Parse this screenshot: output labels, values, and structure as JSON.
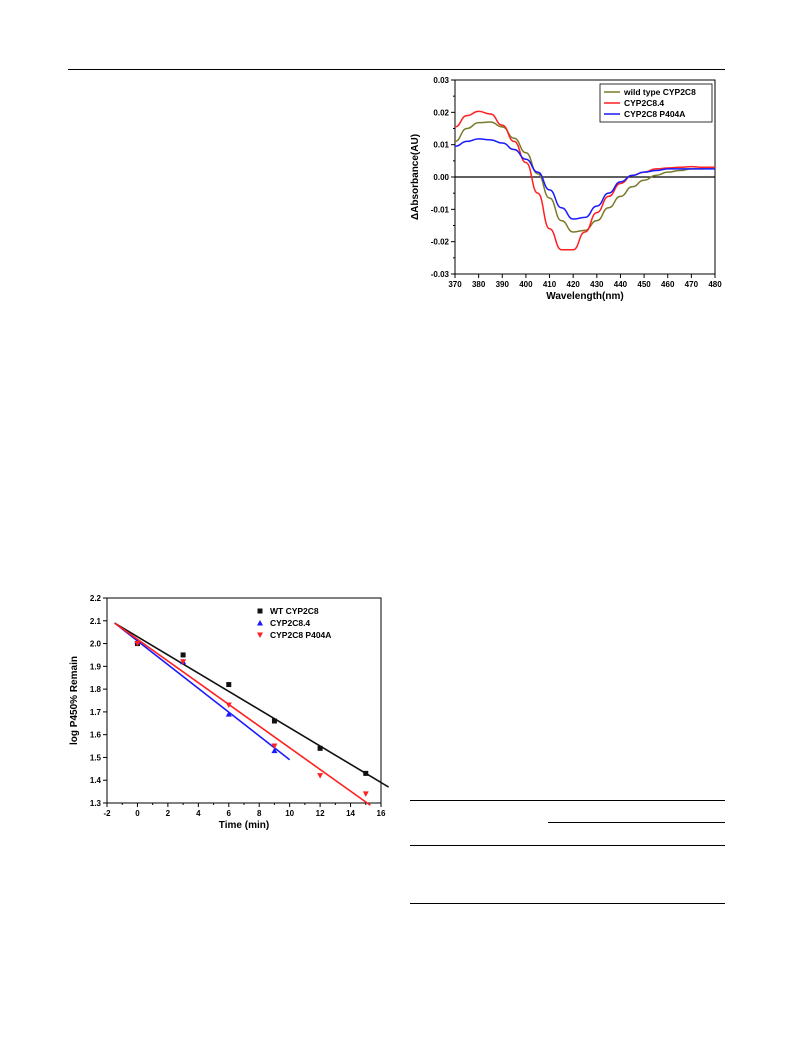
{
  "chart_data": [
    {
      "type": "line",
      "xlabel": "Wavelength(nm)",
      "ylabel": "ΔAbsorbance(AU)",
      "xlim": [
        370,
        480
      ],
      "ylim": [
        -0.03,
        0.03
      ],
      "xticks": [
        "370",
        "380",
        "390",
        "400",
        "410",
        "420",
        "430",
        "440",
        "450",
        "460",
        "470",
        "480"
      ],
      "yticks": [
        "0.03",
        "0.02",
        "0.01",
        "0.00",
        "-0.01",
        "-0.02",
        "-0.03"
      ],
      "legend_position": "top-right",
      "baseline": 0,
      "series": [
        {
          "name": "wild type CYP2C8",
          "color": "#7b7a2a",
          "x": [
            370,
            375,
            380,
            385,
            390,
            395,
            400,
            405,
            410,
            415,
            420,
            425,
            430,
            435,
            440,
            445,
            450,
            455,
            460,
            465,
            470,
            475,
            480
          ],
          "y": [
            0.011,
            0.015,
            0.0168,
            0.017,
            0.0155,
            0.012,
            0.0075,
            0.001,
            -0.0065,
            -0.0135,
            -0.017,
            -0.0165,
            -0.0135,
            -0.0095,
            -0.006,
            -0.003,
            -0.001,
            0.0005,
            0.0015,
            0.002,
            0.0025,
            0.0025,
            0.003
          ]
        },
        {
          "name": "CYP2C8.4",
          "color": "#ff2020",
          "x": [
            370,
            375,
            380,
            385,
            390,
            395,
            400,
            405,
            410,
            415,
            420,
            425,
            430,
            435,
            440,
            445,
            450,
            455,
            460,
            465,
            470,
            475,
            480
          ],
          "y": [
            0.0155,
            0.019,
            0.0203,
            0.0195,
            0.016,
            0.011,
            0.0045,
            -0.005,
            -0.016,
            -0.0225,
            -0.0225,
            -0.017,
            -0.011,
            -0.006,
            -0.002,
            0.0005,
            0.0015,
            0.0025,
            0.0028,
            0.003,
            0.0032,
            0.003,
            0.003
          ]
        },
        {
          "name": "CYP2C8 P404A",
          "color": "#1a1aff",
          "x": [
            370,
            375,
            380,
            385,
            390,
            395,
            400,
            405,
            410,
            415,
            420,
            425,
            430,
            435,
            440,
            445,
            450,
            455,
            460,
            465,
            470,
            475,
            480
          ],
          "y": [
            0.0095,
            0.011,
            0.0118,
            0.0115,
            0.0105,
            0.0085,
            0.0055,
            0.0015,
            -0.004,
            -0.0095,
            -0.013,
            -0.0125,
            -0.009,
            -0.005,
            -0.0015,
            0.0005,
            0.0015,
            0.002,
            0.0025,
            0.0025,
            0.0025,
            0.0025,
            0.0025
          ]
        }
      ]
    },
    {
      "type": "scatter",
      "xlabel": "Time (min)",
      "ylabel": "log P450% Remain",
      "xlim": [
        -2,
        16
      ],
      "ylim": [
        1.3,
        2.2
      ],
      "xticks": [
        "-2",
        "0",
        "2",
        "4",
        "6",
        "8",
        "10",
        "12",
        "14",
        "16"
      ],
      "yticks": [
        "2.2",
        "2.1",
        "2.0",
        "1.9",
        "1.8",
        "1.7",
        "1.6",
        "1.5",
        "1.4",
        "1.3"
      ],
      "legend_position": "top-right",
      "series": [
        {
          "name": "WT CYP2C8",
          "color": "#111111",
          "marker": "square",
          "x": [
            0,
            3,
            6,
            9,
            12,
            15
          ],
          "y": [
            2.0,
            1.95,
            1.82,
            1.66,
            1.54,
            1.43
          ],
          "fit": {
            "x": [
              -1.5,
              16.5
            ],
            "y": [
              2.09,
              1.37
            ]
          }
        },
        {
          "name": "CYP2C8.4",
          "color": "#1a1aff",
          "marker": "triangle-up",
          "x": [
            0,
            3,
            6,
            9
          ],
          "y": [
            2.01,
            1.92,
            1.69,
            1.53
          ],
          "fit": {
            "x": [
              -1.5,
              10
            ],
            "y": [
              2.09,
              1.49
            ]
          }
        },
        {
          "name": "CYP2C8 P404A",
          "color": "#ff2020",
          "marker": "triangle-down",
          "x": [
            0,
            3,
            6,
            9,
            12,
            15
          ],
          "y": [
            2.0,
            1.92,
            1.73,
            1.55,
            1.42,
            1.34
          ],
          "fit": {
            "x": [
              -1.5,
              15.3
            ],
            "y": [
              2.09,
              1.29
            ]
          }
        }
      ]
    }
  ]
}
